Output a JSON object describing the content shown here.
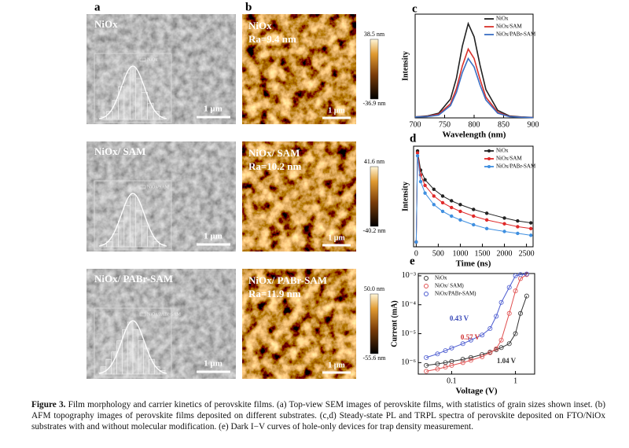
{
  "panel_labels": [
    "a",
    "b",
    "c",
    "d",
    "e"
  ],
  "sem": [
    {
      "label": "NiOx",
      "inset_legend": "NiOx",
      "histogram": [
        1,
        3,
        7,
        12,
        17,
        19,
        15,
        10,
        6,
        3,
        1
      ],
      "scale_bar": "1 μm"
    },
    {
      "label": "NiOx/ SAM",
      "inset_legend": "NiOx/SAM",
      "histogram": [
        1,
        2,
        5,
        10,
        16,
        20,
        14,
        8,
        4,
        2,
        1
      ],
      "scale_bar": "1 μm"
    },
    {
      "label": "NiOx/ PABr-SAM",
      "inset_legend": "NiOx/PABr-SAM",
      "histogram": [
        2,
        4,
        6,
        9,
        12,
        14,
        12,
        9,
        7,
        4,
        2,
        1
      ],
      "scale_bar": "1 μm"
    }
  ],
  "afm": [
    {
      "label": "NiOx",
      "roughness": "Ra=9.4 nm",
      "scale_bar": "1 μm",
      "colorbar_max": "38.5 nm",
      "colorbar_min": "-36.9 nm"
    },
    {
      "label": "NiOx/ SAM",
      "roughness": "Ra=10.2 nm",
      "scale_bar": "1 μm",
      "colorbar_max": "41.6 nm",
      "colorbar_min": "-40.2 nm"
    },
    {
      "label": "NiOx/ PABr-SAM",
      "roughness": "Ra=11.9 nm",
      "scale_bar": "1 μm",
      "colorbar_max": "50.0 nm",
      "colorbar_min": "-55.6 nm"
    }
  ],
  "pl": {
    "xlabel": "Wavelength (nm)",
    "ylabel": "Intensity",
    "x": [
      700,
      720,
      740,
      760,
      770,
      780,
      790,
      800,
      810,
      820,
      840,
      860,
      880,
      900
    ],
    "xlim": [
      700,
      900
    ],
    "xticks": [
      700,
      750,
      800,
      850,
      900
    ],
    "ylim": [
      0,
      1.1
    ],
    "markers": "none",
    "legend": "upper right",
    "series": [
      {
        "name": "NiOx",
        "color": "#222222",
        "values": [
          0.01,
          0.02,
          0.05,
          0.2,
          0.42,
          0.76,
          1.0,
          0.86,
          0.56,
          0.3,
          0.08,
          0.02,
          0.01,
          0.005
        ]
      },
      {
        "name": "NiOx/SAM",
        "color": "#d9312b",
        "values": [
          0.01,
          0.015,
          0.04,
          0.15,
          0.31,
          0.55,
          0.73,
          0.63,
          0.41,
          0.22,
          0.06,
          0.015,
          0.008,
          0.004
        ]
      },
      {
        "name": "NiOx/PABr-SAM",
        "color": "#3a6fc4",
        "values": [
          0.01,
          0.013,
          0.03,
          0.13,
          0.27,
          0.48,
          0.63,
          0.54,
          0.35,
          0.19,
          0.05,
          0.013,
          0.007,
          0.003
        ]
      }
    ]
  },
  "trpl": {
    "xlabel": "Time (ns)",
    "ylabel": "Intensity",
    "x": [
      0,
      30,
      100,
      200,
      400,
      600,
      800,
      1000,
      1300,
      1600,
      2000,
      2300,
      2600
    ],
    "xlim": [
      -60,
      2650
    ],
    "xticks": [
      0,
      500,
      1000,
      1500,
      2000,
      2500
    ],
    "ylim": [
      0,
      1.05
    ],
    "markers": "filled",
    "legend": "upper right",
    "series": [
      {
        "name": "NiOx",
        "color": "#222222",
        "values": [
          0.05,
          1.0,
          0.8,
          0.7,
          0.6,
          0.53,
          0.48,
          0.44,
          0.39,
          0.35,
          0.3,
          0.27,
          0.25
        ]
      },
      {
        "name": "NiOx/SAM",
        "color": "#e02a2a",
        "values": [
          0.05,
          0.98,
          0.75,
          0.64,
          0.53,
          0.46,
          0.41,
          0.37,
          0.32,
          0.28,
          0.24,
          0.21,
          0.19
        ]
      },
      {
        "name": "NiOx/PABr-SAM",
        "color": "#3f8fe0",
        "values": [
          0.05,
          0.95,
          0.68,
          0.56,
          0.44,
          0.37,
          0.32,
          0.28,
          0.23,
          0.19,
          0.16,
          0.14,
          0.12
        ]
      }
    ]
  },
  "iv": {
    "xlabel": "Voltage (V)",
    "ylabel": "Current (mA)",
    "x": [
      0.04,
      0.06,
      0.08,
      0.1,
      0.15,
      0.2,
      0.3,
      0.4,
      0.5,
      0.6,
      0.8,
      1,
      1.2,
      1.5
    ],
    "xlog": true,
    "ylog": true,
    "xlim": [
      0.03,
      2
    ],
    "xticks": [
      0.1,
      1
    ],
    "ylim": [
      4e-07,
      0.0012
    ],
    "yticks": [
      {
        "value": 0.001,
        "label": "10⁻³"
      },
      {
        "value": 0.0001,
        "label": "10⁻⁴"
      },
      {
        "value": 1e-05,
        "label": "10⁻⁵"
      },
      {
        "value": 1e-06,
        "label": "10⁻⁶"
      }
    ],
    "markers": "open",
    "legend": "upper left",
    "series": [
      {
        "name": "NiOx",
        "color": "#333333",
        "values": [
          8e-07,
          9e-07,
          1e-06,
          1.1e-06,
          1.3e-06,
          1.5e-06,
          1.9e-06,
          2.3e-06,
          2.8e-06,
          3.3e-06,
          4.5e-06,
          1e-05,
          5e-05,
          0.0002
        ]
      },
      {
        "name": "NiOx/ SAM)",
        "color": "#e05050",
        "values": [
          5e-07,
          6e-07,
          7e-07,
          8e-07,
          1e-06,
          1.2e-06,
          1.6e-06,
          2.2e-06,
          3e-06,
          6e-06,
          5e-05,
          0.0003,
          0.0008,
          0.0011
        ]
      },
      {
        "name": "NiOx/PABr-SAM)",
        "color": "#4a5ad0",
        "values": [
          1.5e-06,
          2e-06,
          2.6e-06,
          3.2e-06,
          4.5e-06,
          6e-06,
          9e-06,
          1.5e-05,
          4e-05,
          0.00012,
          0.0004,
          0.001,
          0.0011,
          0.00115
        ]
      }
    ],
    "annotations": [
      {
        "text": "0.43 V",
        "color": "#3a4ab8"
      },
      {
        "text": "0.57 V",
        "color": "#d03030"
      },
      {
        "text": "1.04 V",
        "color": "#333333"
      }
    ]
  },
  "caption": {
    "label": "Figure 3.",
    "text": "Film morphology and carrier kinetics of perovskite films. (a) Top-view SEM images of perovskite films, with statistics of grain sizes shown inset. (b) AFM topography images of perovskite films deposited on different substrates. (c,d) Steady-state PL and TRPL spectra of perovskite deposited on FTO/NiOx substrates with and without molecular modification. (e) Dark I−V curves of hole-only devices for trap density measurement."
  }
}
